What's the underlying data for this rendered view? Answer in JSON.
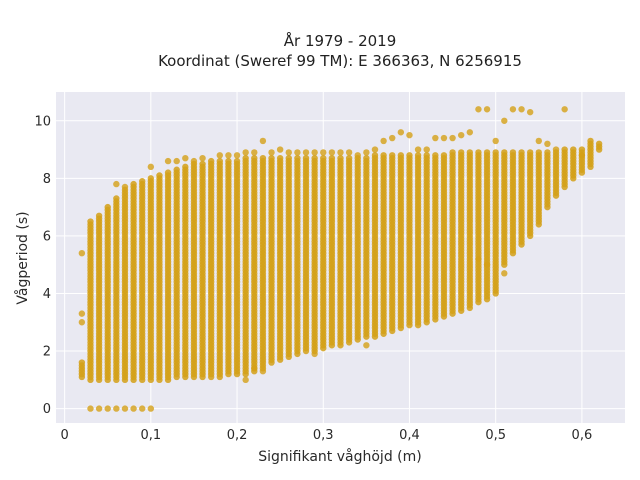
{
  "chart_data": {
    "type": "scatter",
    "title_line1": "År 1979 - 2019",
    "title_line2": "Koordinat (Sweref 99 TM): E 366363, N 6256915",
    "xlabel": "Signifikant våghöjd (m)",
    "ylabel": "Vågperiod (s)",
    "xlim": [
      -0.01,
      0.65
    ],
    "ylim": [
      -0.5,
      11
    ],
    "x_ticks": [
      0,
      0.1,
      0.2,
      0.3,
      0.4,
      0.5,
      0.6
    ],
    "x_tick_labels": [
      "0",
      "0,1",
      "0,2",
      "0,3",
      "0,4",
      "0,5",
      "0,6"
    ],
    "y_ticks": [
      0,
      2,
      4,
      6,
      8,
      10
    ],
    "y_tick_labels": [
      "0",
      "2",
      "4",
      "6",
      "8",
      "10"
    ],
    "grid": true,
    "marker_color": "#d4a017",
    "plot_bg": "#e9e9f2",
    "x_step": 0.01,
    "columns": [
      {
        "x": 0.02,
        "ymin": 1.1,
        "ymax": 1.6,
        "extra": [
          3.3,
          3.0,
          5.4
        ]
      },
      {
        "x": 0.03,
        "ymin": 1.0,
        "ymax": 6.5,
        "extra": [
          0.0
        ]
      },
      {
        "x": 0.04,
        "ymin": 1.0,
        "ymax": 6.7,
        "extra": [
          0.0
        ]
      },
      {
        "x": 0.05,
        "ymin": 1.0,
        "ymax": 7.0,
        "extra": [
          0.0
        ]
      },
      {
        "x": 0.06,
        "ymin": 1.0,
        "ymax": 7.3,
        "extra": [
          0.0,
          7.8
        ]
      },
      {
        "x": 0.07,
        "ymin": 1.0,
        "ymax": 7.6,
        "extra": [
          0.0,
          7.7
        ]
      },
      {
        "x": 0.08,
        "ymin": 1.0,
        "ymax": 7.8,
        "extra": [
          0.0
        ]
      },
      {
        "x": 0.09,
        "ymin": 1.0,
        "ymax": 7.9,
        "extra": [
          0.0
        ]
      },
      {
        "x": 0.1,
        "ymin": 1.0,
        "ymax": 8.0,
        "extra": [
          0.0,
          8.4
        ]
      },
      {
        "x": 0.11,
        "ymin": 1.0,
        "ymax": 8.1,
        "extra": []
      },
      {
        "x": 0.12,
        "ymin": 1.0,
        "ymax": 8.2,
        "extra": [
          8.6
        ]
      },
      {
        "x": 0.13,
        "ymin": 1.1,
        "ymax": 8.3,
        "extra": [
          8.6
        ]
      },
      {
        "x": 0.14,
        "ymin": 1.1,
        "ymax": 8.4,
        "extra": [
          8.7
        ]
      },
      {
        "x": 0.15,
        "ymin": 1.1,
        "ymax": 8.5,
        "extra": [
          8.6
        ]
      },
      {
        "x": 0.16,
        "ymin": 1.1,
        "ymax": 8.5,
        "extra": [
          8.7
        ]
      },
      {
        "x": 0.17,
        "ymin": 1.1,
        "ymax": 8.6,
        "extra": []
      },
      {
        "x": 0.18,
        "ymin": 1.1,
        "ymax": 8.6,
        "extra": [
          8.8
        ]
      },
      {
        "x": 0.19,
        "ymin": 1.2,
        "ymax": 8.6,
        "extra": [
          8.8
        ]
      },
      {
        "x": 0.2,
        "ymin": 1.2,
        "ymax": 8.6,
        "extra": [
          8.8
        ]
      },
      {
        "x": 0.21,
        "ymin": 1.2,
        "ymax": 8.7,
        "extra": [
          8.9,
          1.0
        ]
      },
      {
        "x": 0.22,
        "ymin": 1.3,
        "ymax": 8.7,
        "extra": [
          8.9,
          1.4
        ]
      },
      {
        "x": 0.23,
        "ymin": 1.4,
        "ymax": 8.7,
        "extra": [
          9.3,
          1.3
        ]
      },
      {
        "x": 0.24,
        "ymin": 1.6,
        "ymax": 8.7,
        "extra": [
          8.9
        ]
      },
      {
        "x": 0.25,
        "ymin": 1.7,
        "ymax": 8.7,
        "extra": [
          9.0
        ]
      },
      {
        "x": 0.26,
        "ymin": 1.8,
        "ymax": 8.7,
        "extra": [
          8.9
        ]
      },
      {
        "x": 0.27,
        "ymin": 1.9,
        "ymax": 8.7,
        "extra": [
          8.9
        ]
      },
      {
        "x": 0.28,
        "ymin": 2.0,
        "ymax": 8.7,
        "extra": [
          8.9
        ]
      },
      {
        "x": 0.29,
        "ymin": 2.0,
        "ymax": 8.7,
        "extra": [
          8.9,
          1.9
        ]
      },
      {
        "x": 0.3,
        "ymin": 2.1,
        "ymax": 8.7,
        "extra": [
          8.9
        ]
      },
      {
        "x": 0.31,
        "ymin": 2.2,
        "ymax": 8.7,
        "extra": [
          8.9
        ]
      },
      {
        "x": 0.32,
        "ymin": 2.2,
        "ymax": 8.7,
        "extra": [
          8.9
        ]
      },
      {
        "x": 0.33,
        "ymin": 2.3,
        "ymax": 8.7,
        "extra": [
          8.9
        ]
      },
      {
        "x": 0.34,
        "ymin": 2.4,
        "ymax": 8.7,
        "extra": [
          8.8
        ]
      },
      {
        "x": 0.35,
        "ymin": 2.5,
        "ymax": 8.7,
        "extra": [
          8.9,
          2.2
        ]
      },
      {
        "x": 0.36,
        "ymin": 2.5,
        "ymax": 8.8,
        "extra": [
          9.0
        ]
      },
      {
        "x": 0.37,
        "ymin": 2.6,
        "ymax": 8.8,
        "extra": [
          9.3
        ]
      },
      {
        "x": 0.38,
        "ymin": 2.7,
        "ymax": 8.8,
        "extra": [
          9.4
        ]
      },
      {
        "x": 0.39,
        "ymin": 2.8,
        "ymax": 8.8,
        "extra": [
          9.6
        ]
      },
      {
        "x": 0.4,
        "ymin": 2.9,
        "ymax": 8.8,
        "extra": [
          9.5
        ]
      },
      {
        "x": 0.41,
        "ymin": 2.9,
        "ymax": 8.8,
        "extra": [
          9.0
        ]
      },
      {
        "x": 0.42,
        "ymin": 3.0,
        "ymax": 8.8,
        "extra": [
          9.0
        ]
      },
      {
        "x": 0.43,
        "ymin": 3.1,
        "ymax": 8.8,
        "extra": [
          9.4
        ]
      },
      {
        "x": 0.44,
        "ymin": 3.2,
        "ymax": 8.8,
        "extra": [
          9.4
        ]
      },
      {
        "x": 0.45,
        "ymin": 3.3,
        "ymax": 8.9,
        "extra": [
          9.4
        ]
      },
      {
        "x": 0.46,
        "ymin": 3.4,
        "ymax": 8.9,
        "extra": [
          9.5
        ]
      },
      {
        "x": 0.47,
        "ymin": 3.5,
        "ymax": 8.9,
        "extra": [
          9.6
        ]
      },
      {
        "x": 0.48,
        "ymin": 3.7,
        "ymax": 8.9,
        "extra": [
          10.4,
          5.2
        ]
      },
      {
        "x": 0.49,
        "ymin": 3.8,
        "ymax": 8.9,
        "extra": [
          10.4,
          5.0
        ]
      },
      {
        "x": 0.5,
        "ymin": 4.0,
        "ymax": 8.9,
        "extra": [
          9.3
        ]
      },
      {
        "x": 0.51,
        "ymin": 5.0,
        "ymax": 8.9,
        "extra": [
          10.0,
          4.7
        ]
      },
      {
        "x": 0.52,
        "ymin": 5.4,
        "ymax": 8.9,
        "extra": [
          10.4
        ]
      },
      {
        "x": 0.53,
        "ymin": 5.7,
        "ymax": 8.9,
        "extra": [
          10.4
        ]
      },
      {
        "x": 0.54,
        "ymin": 6.0,
        "ymax": 8.9,
        "extra": [
          10.3
        ]
      },
      {
        "x": 0.55,
        "ymin": 6.4,
        "ymax": 8.9,
        "extra": [
          9.3
        ]
      },
      {
        "x": 0.56,
        "ymin": 7.0,
        "ymax": 8.9,
        "extra": [
          9.2
        ]
      },
      {
        "x": 0.57,
        "ymin": 7.4,
        "ymax": 8.9,
        "extra": [
          9.0
        ]
      },
      {
        "x": 0.58,
        "ymin": 7.7,
        "ymax": 9.0,
        "extra": [
          10.4
        ]
      },
      {
        "x": 0.59,
        "ymin": 8.0,
        "ymax": 9.0,
        "extra": []
      },
      {
        "x": 0.6,
        "ymin": 8.2,
        "ymax": 9.0,
        "extra": [
          8.8
        ]
      },
      {
        "x": 0.61,
        "ymin": 8.4,
        "ymax": 9.3,
        "extra": []
      },
      {
        "x": 0.62,
        "ymin": 9.0,
        "ymax": 9.2,
        "extra": []
      }
    ]
  }
}
